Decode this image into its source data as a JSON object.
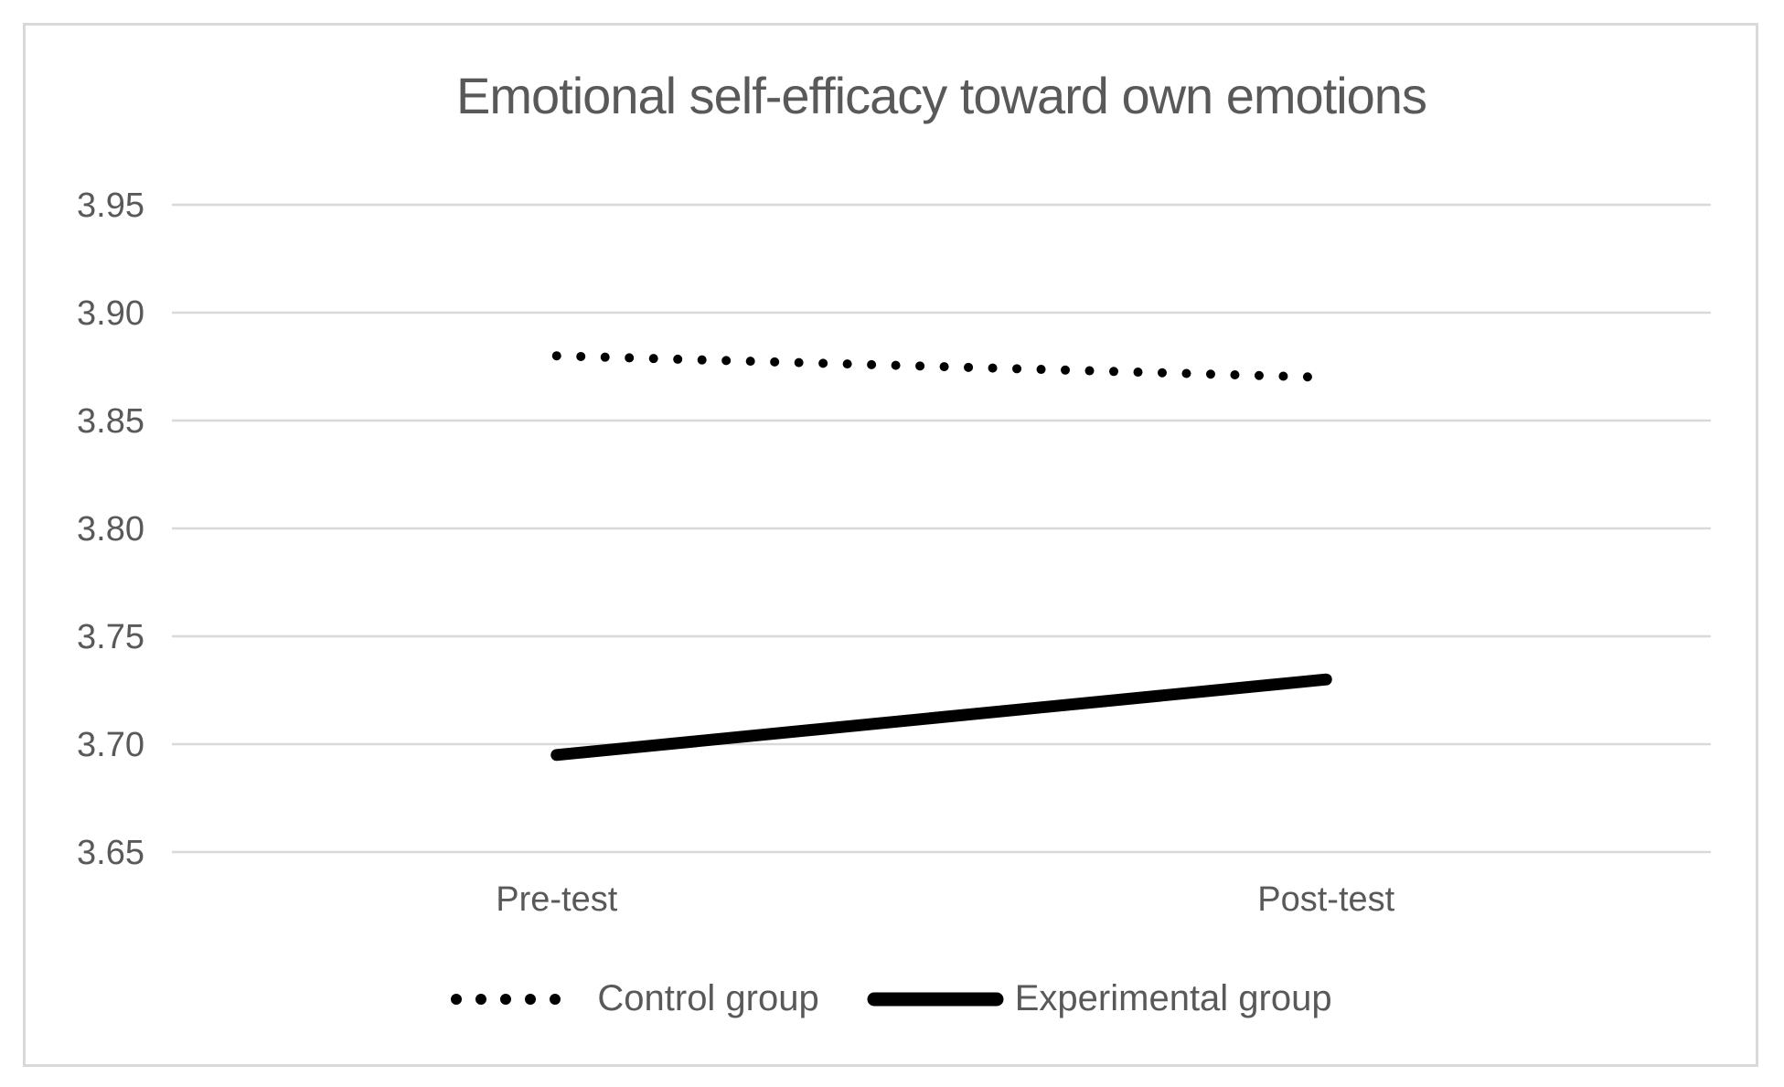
{
  "chart_data": {
    "type": "line",
    "title": "Emotional self-efficacy toward own emotions",
    "categories": [
      "Pre-test",
      "Post-test"
    ],
    "series": [
      {
        "name": "Control group",
        "values": [
          3.88,
          3.87
        ],
        "line_style": "dotted",
        "color": "#000000"
      },
      {
        "name": "Experimental group",
        "values": [
          3.695,
          3.73
        ],
        "line_style": "solid",
        "color": "#000000"
      }
    ],
    "ylim": [
      3.65,
      3.95
    ],
    "ytick_step": 0.05,
    "ytick_labels": [
      "3.95",
      "3.90",
      "3.85",
      "3.80",
      "3.75",
      "3.70",
      "3.65"
    ],
    "grid": true,
    "legend_position": "bottom",
    "text_color": "#595959",
    "gridline_color": "#d9d9d9",
    "frame_border_color": "#d9d9d9",
    "background_color": "#ffffff"
  }
}
